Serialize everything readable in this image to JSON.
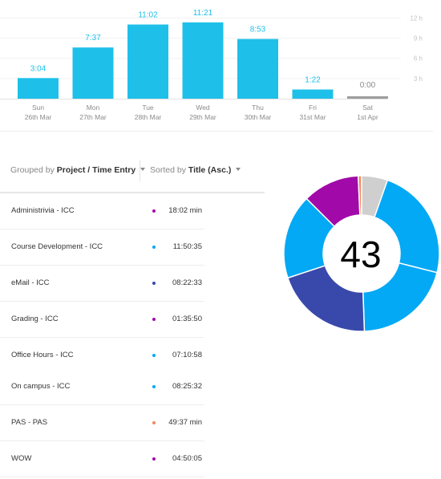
{
  "chart_data": {
    "type": "bar",
    "categories": [
      "Sun",
      "Mon",
      "Tue",
      "Wed",
      "Thu",
      "Fri",
      "Sat"
    ],
    "dates": [
      "26th Mar",
      "27th Mar",
      "28th Mar",
      "29th Mar",
      "30th Mar",
      "31st Mar",
      "1st Apr"
    ],
    "values": [
      3.067,
      7.617,
      11.033,
      11.35,
      8.883,
      1.367,
      0
    ],
    "labels": [
      "3:04",
      "7:37",
      "11:02",
      "11:21",
      "8:53",
      "1:22",
      "0:00"
    ],
    "y_ticks": [
      3,
      6,
      9,
      12
    ],
    "y_tick_labels": [
      "3 h",
      "6 h",
      "9 h",
      "12 h"
    ],
    "ylim": [
      0,
      12.9
    ],
    "bar_color": "#1ec0ea",
    "zero_bar_color": "#9e9e9e"
  },
  "toolbar": {
    "grouped_prefix": "Grouped by",
    "grouped_value": "Project / Time Entry",
    "sorted_prefix": "Sorted by",
    "sorted_value": "Title (Asc.)"
  },
  "entries": [
    {
      "title": "Administrivia - ICC",
      "duration": "18:02 min",
      "color": "#a10aa8"
    },
    {
      "title": "Course Development - ICC",
      "duration": "11:50:35",
      "color": "#03a9f4"
    },
    {
      "title": "eMail - ICC",
      "duration": "08:22:33",
      "color": "#3949ab"
    },
    {
      "title": "Grading - ICC",
      "duration": "01:35:50",
      "color": "#a10aa8"
    },
    {
      "title": "Office Hours - ICC",
      "duration": "07:10:58",
      "color": "#03a9f4"
    },
    {
      "title": "On campus - ICC",
      "duration": "08:25:32",
      "color": "#03a9f4"
    },
    {
      "title": "PAS - PAS",
      "duration": "49:37 min",
      "color": "#ef8a5e"
    },
    {
      "title": "WOW",
      "duration": "04:50:05",
      "color": "#a10aa8"
    }
  ],
  "donut": {
    "center_label": "43",
    "segments": [
      {
        "value": 0.2895,
        "color": "#03a9f4"
      },
      {
        "value": 0.2048,
        "color": "#03a9f4"
      },
      {
        "value": 0.205,
        "color": "#3949ab"
      },
      {
        "value": 0.1754,
        "color": "#03a9f4"
      },
      {
        "value": 0.1183,
        "color": "#a10aa8"
      },
      {
        "value": 0.007,
        "color": "#ef8a5e"
      },
      {
        "value": 0.0,
        "color": "#a10aa8"
      },
      {
        "value": 0.054,
        "color": "#cfcfcf"
      }
    ]
  }
}
